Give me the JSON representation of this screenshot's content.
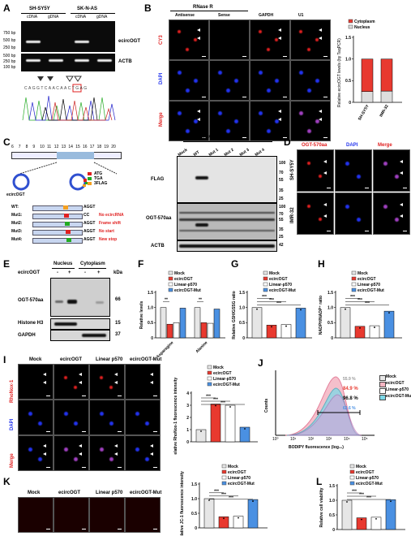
{
  "panels": {
    "A": "A",
    "B": "B",
    "C": "C",
    "D": "D",
    "E": "E",
    "F": "F",
    "G": "G",
    "H": "H",
    "I": "I",
    "J": "J",
    "K": "K",
    "L": "L"
  },
  "A": {
    "cells": [
      "SH-SY5Y",
      "SK-N-AS"
    ],
    "lanes": [
      "cDNA",
      "gDNA",
      "cDNA",
      "gDNA"
    ],
    "size_top": [
      "750 bp",
      "500 bp",
      "250 bp"
    ],
    "size_bottom": [
      "500 bp",
      "250 bp",
      "100 bp"
    ],
    "genes": [
      "ecircOGT",
      "ACTB"
    ],
    "sequence": "CAGGTCAACAACTGAG"
  },
  "B": {
    "header": "RNase R",
    "cols": [
      "Antisense",
      "Sense",
      "GAPDH",
      "U1"
    ],
    "rows": [
      "CY3",
      "DAPI",
      "Merge"
    ],
    "chart": {
      "ylabel": "Relative ecircOGT levels (by TaqPCR)",
      "legend": [
        "Cytoplasm",
        "Nucleus"
      ],
      "categories": [
        "SH-SY5Y",
        "IMR-32"
      ],
      "yticks": [
        "0",
        "0.5",
        "1.0",
        "1.5"
      ]
    }
  },
  "C": {
    "exon_numbers": [
      "6",
      "7",
      "8",
      "9",
      "10",
      "11",
      "12",
      "13",
      "14",
      "15",
      "16",
      "17",
      "18",
      "19",
      "20"
    ],
    "circ_label": "ecircOGT",
    "legend": [
      "ATG",
      "TGA",
      "3FLAG"
    ],
    "mutants": [
      {
        "name": "WT:",
        "seq": "AG",
        "tail": "AGGT",
        "note": ""
      },
      {
        "name": "Mut1:",
        "seq": "AG",
        "tail": "CC",
        "note": "No ecircRNA"
      },
      {
        "name": "Mut2:",
        "seq": "AG",
        "tail": "AGGT",
        "note": "Frame shift"
      },
      {
        "name": "Mut3:",
        "seq": "AG",
        "tail": "AGGT",
        "note": "No start"
      },
      {
        "name": "Mut4:",
        "seq": "AG",
        "tail": "AGGT",
        "note": "New stop"
      }
    ],
    "blot_header": "ecircOGT-3FLAG",
    "lanes": [
      "Mock",
      "WT",
      "Mut 1",
      "Mut 2",
      "Mut 3",
      "Mut 4"
    ],
    "blots": [
      "FLAG",
      "OGT-570aa",
      "ACTB"
    ],
    "kda_flag": [
      "100",
      "70",
      "55",
      "35",
      "25"
    ],
    "kda_ogt": [
      "100",
      "70",
      "55",
      "35",
      "25"
    ],
    "kda_actb": [
      "42"
    ]
  },
  "D": {
    "cols": [
      "OGT-570aa",
      "DAPI",
      "Merge"
    ],
    "rows": [
      "SH-SY5Y",
      "IMR-32"
    ]
  },
  "E": {
    "header_nucleus": "Nucleus",
    "header_cyto": "Cytoplasm",
    "row_label": "ecircOGT",
    "signs": [
      "-",
      "+",
      "-",
      "+"
    ],
    "kda": "kDa",
    "blots": [
      "OGT-570aa",
      "Histone H3",
      "GAPDH"
    ],
    "kda_values": [
      "66",
      "15",
      "37"
    ]
  },
  "legend4": [
    "Mock",
    "ecircOGT",
    "Linear-p570",
    "ecircOGT-Mut"
  ],
  "F": {
    "ylabel": "Relative levels",
    "categories": [
      "Asparagine",
      "Alanine"
    ],
    "yticks": [
      "0",
      "0.5",
      "1.0",
      "1.5"
    ]
  },
  "G": {
    "ylabel": "Relative GSH/GSSG ratio",
    "yticks": [
      "0",
      "0.5",
      "1.0",
      "1.5"
    ]
  },
  "H": {
    "ylabel": "NADPH/NADP⁺ ratio",
    "yticks": [
      "0",
      "0.5",
      "1.0",
      "1.5"
    ]
  },
  "I": {
    "cols": [
      "Mock",
      "ecircOGT",
      "Linear p570",
      "ecircOGT-Mut"
    ],
    "rows": [
      "RhoNox-1",
      "DAPI",
      "Merge"
    ],
    "ylabel": "Relative RhoNox-1 fluorescence intensity",
    "yticks": [
      "0",
      "1",
      "2",
      "3",
      "4"
    ]
  },
  "J": {
    "xlabel": "BODIPY fluorescence (log₁₀)",
    "ylabel": "Counts",
    "pcts": [
      "55.9 %",
      "84.9 %",
      "96.8 %",
      "62.6 %"
    ],
    "legend": [
      "Mock",
      "ecircOGT",
      "Linear-p570",
      "ecircOGT-Mut"
    ],
    "xticks": [
      "10⁰",
      "10¹",
      "10²",
      "10³",
      "10⁴",
      "10⁵"
    ]
  },
  "K": {
    "cols": [
      "Mock",
      "ecircOGT",
      "Linear p570",
      "ecircOGT-Mut"
    ],
    "ylabel": "Relative JC-1 fluorescence intensity",
    "yticks": [
      "0",
      "0.5",
      "1.0",
      "1.5"
    ]
  },
  "L": {
    "ylabel": "Relative cell viability",
    "yticks": [
      "0",
      "0.5",
      "1.0",
      "1.5"
    ]
  },
  "sig": {
    "two": "**",
    "three": "***"
  },
  "chart_data": [
    {
      "type": "bar",
      "id": "B",
      "categories": [
        "SH-SY5Y",
        "IMR-32"
      ],
      "series": [
        {
          "name": "Cytoplasm",
          "values": [
            0.75,
            0.74
          ]
        },
        {
          "name": "Nucleus",
          "values": [
            0.25,
            0.26
          ]
        }
      ],
      "stacked": true,
      "ylim": [
        0,
        1.5
      ]
    },
    {
      "type": "bar",
      "id": "F",
      "categories": [
        "Asparagine",
        "Alanine"
      ],
      "series": [
        {
          "name": "Mock",
          "values": [
            1.0,
            1.0
          ]
        },
        {
          "name": "ecircOGT",
          "values": [
            0.45,
            0.5
          ]
        },
        {
          "name": "Linear-p570",
          "values": [
            0.5,
            0.48
          ]
        },
        {
          "name": "ecircOGT-Mut",
          "values": [
            0.98,
            0.95
          ]
        }
      ],
      "ylim": [
        0,
        1.5
      ]
    },
    {
      "type": "bar",
      "id": "G",
      "categories": [
        "Mock",
        "ecircOGT",
        "Linear-p570",
        "ecircOGT-Mut"
      ],
      "values": [
        1.0,
        0.42,
        0.44,
        0.98
      ],
      "ylim": [
        0,
        1.5
      ]
    },
    {
      "type": "bar",
      "id": "H",
      "categories": [
        "Mock",
        "ecircOGT",
        "Linear-p570",
        "ecircOGT-Mut"
      ],
      "values": [
        1.0,
        0.38,
        0.4,
        0.88
      ],
      "ylim": [
        0,
        1.5
      ]
    },
    {
      "type": "bar",
      "id": "I",
      "categories": [
        "Mock",
        "ecircOGT",
        "Linear-p570",
        "ecircOGT-Mut"
      ],
      "values": [
        1.0,
        3.1,
        3.0,
        1.2
      ],
      "ylim": [
        0,
        4
      ]
    },
    {
      "type": "bar",
      "id": "K",
      "categories": [
        "Mock",
        "ecircOGT",
        "Linear-p570",
        "ecircOGT-Mut"
      ],
      "values": [
        1.0,
        0.38,
        0.4,
        0.97
      ],
      "ylim": [
        0,
        1.5
      ]
    },
    {
      "type": "bar",
      "id": "L",
      "categories": [
        "Mock",
        "ecircOGT",
        "Linear-p570",
        "ecircOGT-Mut"
      ],
      "values": [
        1.0,
        0.4,
        0.42,
        1.02
      ],
      "ylim": [
        0,
        1.5
      ]
    }
  ],
  "colors": {
    "Mock": "#e6e6e6",
    "ecircOGT": "#e8392f",
    "Linear-p570": "#ffffff",
    "ecircOGT-Mut": "#4a90e2",
    "nucleus": "#dddddd",
    "cytoplasm": "#e8392f"
  }
}
